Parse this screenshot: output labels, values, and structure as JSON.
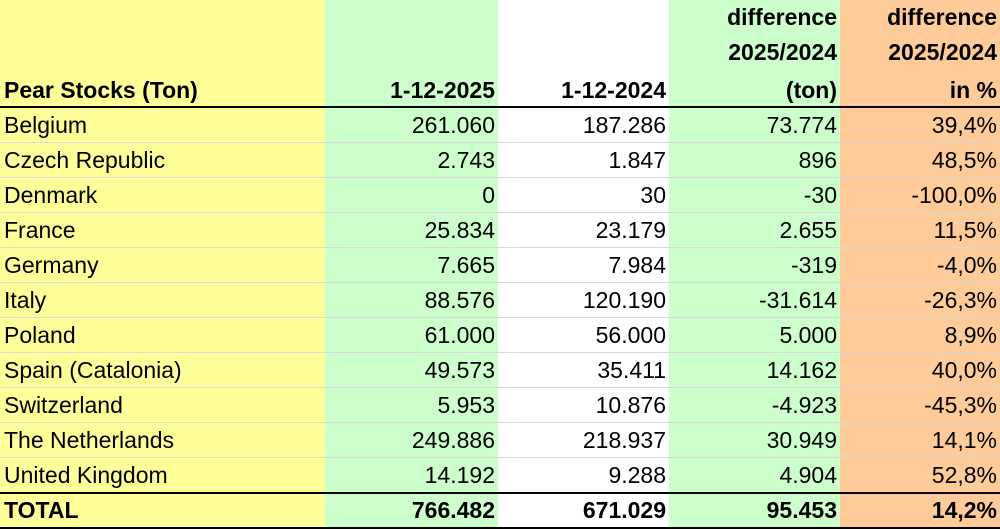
{
  "header": {
    "country_label": "Pear Stocks (Ton)",
    "col_2025": "1-12-2025",
    "col_2024": "1-12-2024",
    "diff_ton_line1": "difference",
    "diff_ton_line2": "2025/2024",
    "diff_ton_line3": "(ton)",
    "diff_pct_line1": "difference",
    "diff_pct_line2": "2025/2024",
    "diff_pct_line3": "in %"
  },
  "rows": [
    {
      "country": "Belgium",
      "v2025": "261.060",
      "v2024": "187.286",
      "diff": "73.774",
      "pct": "39,4%"
    },
    {
      "country": "Czech Republic",
      "v2025": "2.743",
      "v2024": "1.847",
      "diff": "896",
      "pct": "48,5%"
    },
    {
      "country": "Denmark",
      "v2025": "0",
      "v2024": "30",
      "diff": "-30",
      "pct": "-100,0%"
    },
    {
      "country": "France",
      "v2025": "25.834",
      "v2024": "23.179",
      "diff": "2.655",
      "pct": "11,5%"
    },
    {
      "country": "Germany",
      "v2025": "7.665",
      "v2024": "7.984",
      "diff": "-319",
      "pct": "-4,0%"
    },
    {
      "country": "Italy",
      "v2025": "88.576",
      "v2024": "120.190",
      "diff": "-31.614",
      "pct": "-26,3%"
    },
    {
      "country": "Poland",
      "v2025": "61.000",
      "v2024": "56.000",
      "diff": "5.000",
      "pct": "8,9%"
    },
    {
      "country": "Spain (Catalonia)",
      "v2025": "49.573",
      "v2024": "35.411",
      "diff": "14.162",
      "pct": "40,0%"
    },
    {
      "country": "Switzerland",
      "v2025": "5.953",
      "v2024": "10.876",
      "diff": "-4.923",
      "pct": "-45,3%"
    },
    {
      "country": "The Netherlands",
      "v2025": "249.886",
      "v2024": "218.937",
      "diff": "30.949",
      "pct": "14,1%"
    },
    {
      "country": "United Kingdom",
      "v2025": "14.192",
      "v2024": "9.288",
      "diff": "4.904",
      "pct": "52,8%"
    }
  ],
  "total": {
    "label": "TOTAL",
    "v2025": "766.482",
    "v2024": "671.029",
    "diff": "95.453",
    "pct": "14,2%"
  },
  "colors": {
    "yellow": "#ffff99",
    "green": "#ccffcc",
    "orange": "#ffcc99"
  }
}
